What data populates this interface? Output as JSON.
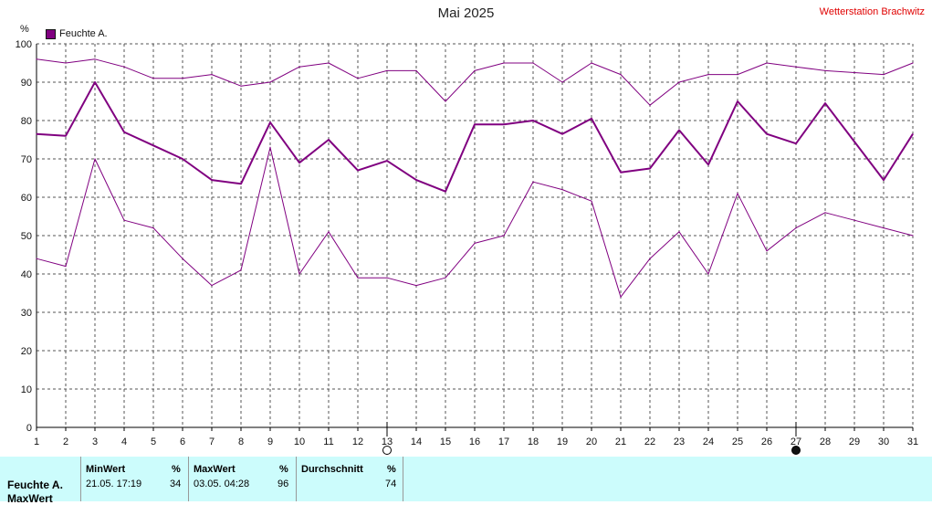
{
  "title": "Mai 2025",
  "station": "Wetterstation Brachwitz",
  "legend_label": "Feuchte A.",
  "y_unit": "%",
  "colors": {
    "series": "#800080",
    "station": "#e00000",
    "stats_bg": "#ccfcfc",
    "grid": "#555555"
  },
  "chart_data": {
    "type": "line",
    "title": "Mai 2025",
    "ylabel": "%",
    "ylim": [
      0,
      100
    ],
    "yticks": [
      0,
      10,
      20,
      30,
      40,
      50,
      60,
      70,
      80,
      90,
      100
    ],
    "x": [
      1,
      2,
      3,
      4,
      5,
      6,
      7,
      8,
      9,
      10,
      11,
      12,
      13,
      14,
      15,
      16,
      17,
      18,
      19,
      20,
      21,
      22,
      23,
      24,
      25,
      26,
      27,
      28,
      29,
      30,
      31
    ],
    "grid": true,
    "legend_position": "top-left",
    "series": [
      {
        "name": "Feuchte A.",
        "role": "max",
        "values": [
          96,
          95,
          96,
          94,
          91,
          91,
          92,
          89,
          90,
          94,
          95,
          91,
          93,
          93,
          85,
          93,
          95,
          95,
          90,
          95,
          92,
          84,
          90,
          92,
          92,
          95,
          94,
          93,
          92.5,
          92,
          95
        ]
      },
      {
        "name": "Feuchte A.",
        "role": "avg",
        "values": [
          76.5,
          76,
          90,
          77,
          73.5,
          70,
          64.5,
          63.5,
          79.5,
          69,
          75,
          67,
          69.5,
          64.5,
          61.5,
          79,
          79,
          80,
          76.5,
          80.5,
          66.5,
          67.5,
          77.5,
          68.5,
          85,
          76.5,
          74,
          84.5,
          74.5,
          64.5,
          76.5
        ]
      },
      {
        "name": "Feuchte A.",
        "role": "min",
        "values": [
          44,
          42,
          70,
          54,
          52,
          44,
          37,
          41,
          73,
          40,
          51,
          39,
          39,
          37,
          39,
          48,
          50,
          64,
          62,
          59,
          34,
          44,
          51,
          40,
          61,
          46,
          52,
          56,
          54,
          52,
          50
        ]
      }
    ],
    "moon_phases": [
      {
        "day": 13,
        "phase": "full-moon"
      },
      {
        "day": 27,
        "phase": "new-moon"
      }
    ]
  },
  "stats": {
    "row_label": "Feuchte A.",
    "row_label_2": "MaxWert",
    "min": {
      "header": "MinWert",
      "unit": "%",
      "when": "21.05.  17:19",
      "value": "34"
    },
    "max": {
      "header": "MaxWert",
      "unit": "%",
      "when": "03.05.  04:28",
      "value": "96"
    },
    "avg": {
      "header": "Durchschnitt",
      "unit": "%",
      "value": "74"
    }
  }
}
